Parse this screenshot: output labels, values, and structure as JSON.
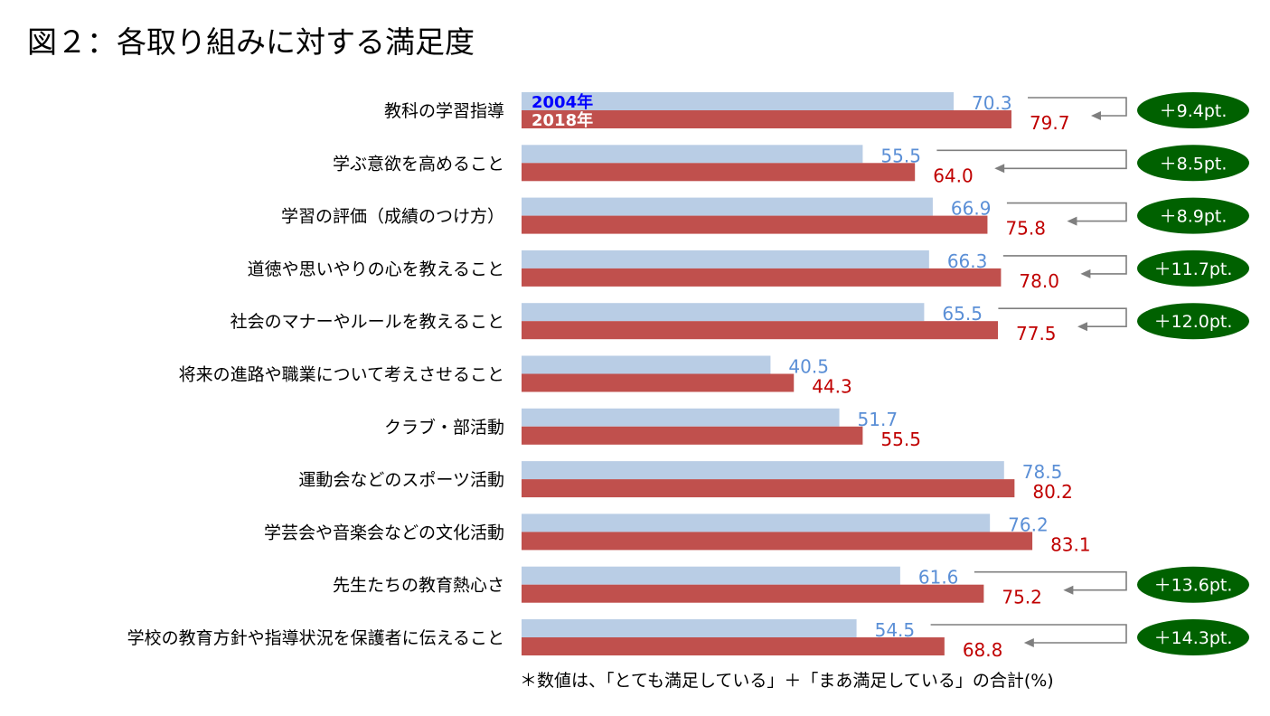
{
  "chart_data": {
    "type": "bar",
    "orientation": "horizontal",
    "title": "図２：各取り組みに対する満足度",
    "xlabel": "",
    "ylabel": "",
    "xlim": [
      0,
      100
    ],
    "grid": false,
    "legend_placement": "inside-first-bar",
    "categories": [
      "教科の学習指導",
      "学ぶ意欲を高めること",
      "学習の評価（成績のつけ方）",
      "道徳や思いやりの心を教えること",
      "社会のマナーやルールを教えること",
      "将来の進路や職業について考えさせること",
      "クラブ・部活動",
      "運動会などのスポーツ活動",
      "学芸会や音楽会などの文化活動",
      "先生たちの教育熱心さ",
      "学校の教育方針や指導状況を保護者に伝えること"
    ],
    "series": [
      {
        "name": "2004年",
        "color": "#b9cde5",
        "label_color": "#5b8fd6",
        "values": [
          70.3,
          55.5,
          66.9,
          66.3,
          65.5,
          40.5,
          51.7,
          78.5,
          76.2,
          61.6,
          54.5
        ]
      },
      {
        "name": "2018年",
        "color": "#c0504d",
        "label_color": "#c00000",
        "values": [
          79.7,
          64.0,
          75.8,
          78.0,
          77.5,
          44.3,
          55.5,
          80.2,
          83.1,
          75.2,
          68.8
        ]
      }
    ],
    "annotations": [
      {
        "index": 0,
        "text": "＋9.4pt."
      },
      {
        "index": 1,
        "text": "＋8.5pt."
      },
      {
        "index": 2,
        "text": "＋8.9pt."
      },
      {
        "index": 3,
        "text": "＋11.7pt."
      },
      {
        "index": 4,
        "text": "＋12.0pt."
      },
      {
        "index": 9,
        "text": "＋13.6pt."
      },
      {
        "index": 10,
        "text": "＋14.3pt."
      }
    ],
    "annotation_color": "#006100",
    "note": "＊数値は、「とても満足している」＋「まあ満足している」の合計(%)"
  }
}
